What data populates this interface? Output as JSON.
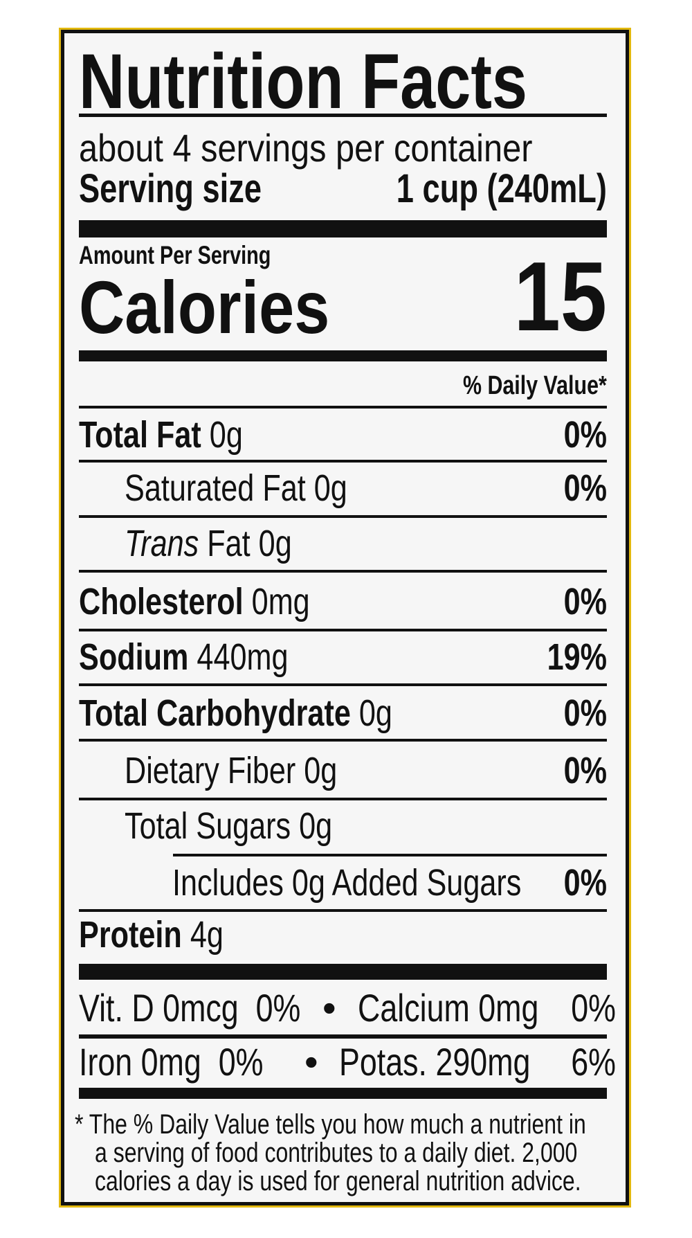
{
  "label": {
    "title": "Nutrition Facts",
    "servings_per_container": "about 4 servings per container",
    "serving_size_label": "Serving size",
    "serving_size_value": "1 cup (240mL)",
    "amount_per_serving": "Amount Per Serving",
    "calories_label": "Calories",
    "calories_value": "15",
    "daily_value_header": "% Daily Value*",
    "nutrients": [
      {
        "name": "Total Fat",
        "amount": "0g",
        "dv": "0%"
      },
      {
        "name": "Saturated Fat",
        "amount": "0g",
        "dv": "0%"
      },
      {
        "name": "Trans",
        "name_suffix": "Fat",
        "amount": "0g",
        "dv": ""
      },
      {
        "name": "Cholesterol",
        "amount": "0mg",
        "dv": "0%"
      },
      {
        "name": "Sodium",
        "amount": "440mg",
        "dv": "19%"
      },
      {
        "name": "Total Carbohydrate",
        "amount": "0g",
        "dv": "0%"
      },
      {
        "name": "Dietary Fiber",
        "amount": "0g",
        "dv": "0%"
      },
      {
        "name": "Total Sugars",
        "amount": "0g",
        "dv": ""
      },
      {
        "name": "Includes 0g Added Sugars",
        "amount": "",
        "dv": "0%"
      },
      {
        "name": "Protein",
        "amount": "4g",
        "dv": ""
      }
    ],
    "vitamins_row1": {
      "a": "Vit. D 0mcg",
      "a_dv": "0%",
      "sep": "•",
      "b": "Calcium 0mg",
      "b_dv": "0%"
    },
    "vitamins_row2": {
      "a": "Iron 0mg",
      "a_dv": "0%",
      "sep": "•",
      "b": "Potas. 290mg",
      "b_dv": "6%"
    },
    "footnote": [
      "* The % Daily Value tells you how much a nutrient in",
      "a serving of food contributes to a daily diet. 2,000",
      "calories a day is used for general nutrition advice."
    ]
  },
  "colors": {
    "border_accent": "#e2b80f",
    "ink": "#111111",
    "background": "#f6f6f6"
  }
}
